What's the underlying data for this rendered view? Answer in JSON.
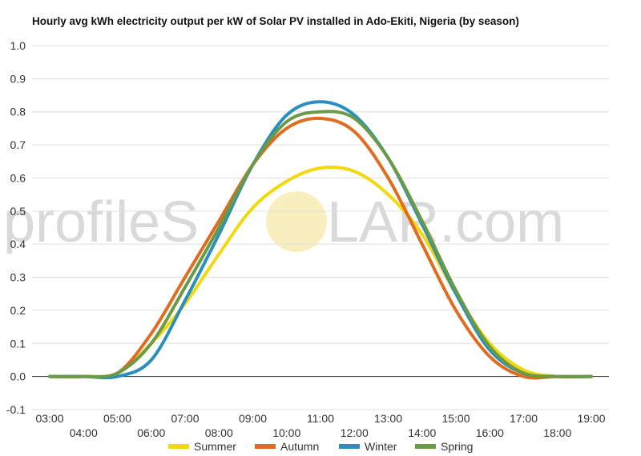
{
  "chart_data": {
    "type": "line",
    "title": "Hourly avg kWh electricity output per kW of Solar PV installed in Ado-Ekiti, Nigeria (by season)",
    "xlabel": "",
    "ylabel": "",
    "ylim": [
      -0.1,
      1.0
    ],
    "yticks": [
      "-0.1",
      "0.0",
      "0.1",
      "0.2",
      "0.3",
      "0.4",
      "0.5",
      "0.6",
      "0.7",
      "0.8",
      "0.9",
      "1.0"
    ],
    "x": [
      "03:00",
      "04:00",
      "05:00",
      "06:00",
      "07:00",
      "08:00",
      "09:00",
      "10:00",
      "11:00",
      "12:00",
      "13:00",
      "14:00",
      "15:00",
      "16:00",
      "17:00",
      "18:00",
      "19:00"
    ],
    "grid": true,
    "legend_position": "bottom",
    "series": [
      {
        "name": "Summer",
        "color": "#f2d80f",
        "values": [
          0.0,
          0.0,
          0.01,
          0.1,
          0.22,
          0.37,
          0.51,
          0.59,
          0.63,
          0.62,
          0.55,
          0.43,
          0.25,
          0.1,
          0.02,
          0.0,
          0.0
        ]
      },
      {
        "name": "Autumn",
        "color": "#e06c1f",
        "values": [
          0.0,
          0.0,
          0.01,
          0.13,
          0.3,
          0.47,
          0.64,
          0.75,
          0.78,
          0.74,
          0.6,
          0.4,
          0.2,
          0.06,
          0.0,
          0.0,
          0.0
        ]
      },
      {
        "name": "Winter",
        "color": "#2a8fbd",
        "values": [
          0.0,
          0.0,
          0.0,
          0.05,
          0.23,
          0.43,
          0.64,
          0.79,
          0.83,
          0.79,
          0.66,
          0.46,
          0.25,
          0.08,
          0.01,
          0.0,
          0.0
        ]
      },
      {
        "name": "Spring",
        "color": "#6b9a47",
        "values": [
          0.0,
          0.0,
          0.01,
          0.1,
          0.27,
          0.45,
          0.64,
          0.77,
          0.8,
          0.78,
          0.66,
          0.47,
          0.26,
          0.09,
          0.01,
          0.0,
          0.0
        ]
      }
    ]
  },
  "watermark": {
    "text_left": "profileS",
    "text_right": "LAR.com",
    "sun_color": "#f7e8a3"
  }
}
